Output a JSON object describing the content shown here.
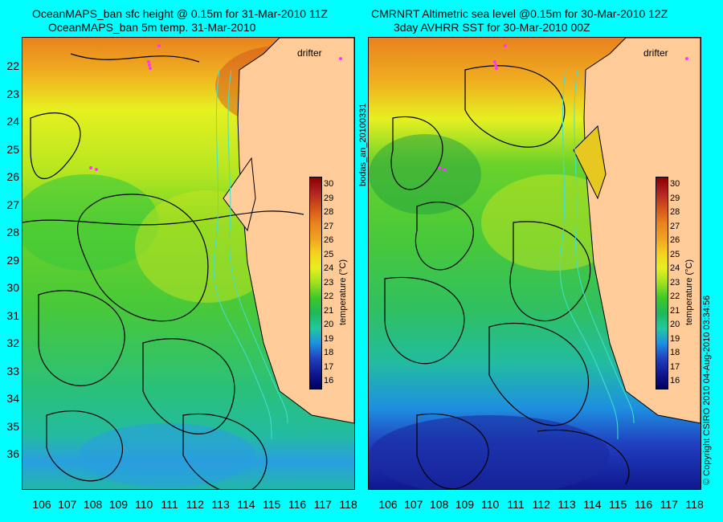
{
  "left_panel": {
    "title_line1": "OceanMAPS_ban sfc height @ 0.15m for 31-Mar-2010 11Z",
    "title_line2": "OceanMAPS_ban 5m temp. 31-Mar-2010",
    "drifter_label": "drifter",
    "colorbar_label": "temperature (°C)"
  },
  "right_panel": {
    "title_line1": "CMRNRT Altimetric sea level  @0.15m  for 30-Mar-2010 12Z",
    "title_line2": "3day AVHRR SST for 30-Mar-2010 00Z",
    "drifter_label": "drifter",
    "colorbar_label": "temperature (°C)"
  },
  "side_labels": {
    "run_id": "bodas_an_20100331",
    "credit": "© Copyright CSIRO 2010   04-Aug-2010 03:34:56"
  },
  "latitude_labels": [
    "22",
    "23",
    "24",
    "25",
    "26",
    "27",
    "28",
    "29",
    "30",
    "31",
    "32",
    "33",
    "34",
    "35",
    "36"
  ],
  "longitude_labels": [
    "106",
    "107",
    "108",
    "109",
    "110",
    "111",
    "112",
    "113",
    "114",
    "115",
    "116",
    "117",
    "118"
  ],
  "colorbar": {
    "ticks": [
      "30",
      "29",
      "28",
      "27",
      "26",
      "25",
      "24",
      "23",
      "22",
      "21",
      "20",
      "19",
      "18",
      "17",
      "16"
    ],
    "colors": [
      "#8b0000",
      "#b22222",
      "#d2521a",
      "#e8821e",
      "#f0a020",
      "#f5d020",
      "#e6f020",
      "#a0e01e",
      "#3cc828",
      "#20b85a",
      "#20c8a0",
      "#1e90e0",
      "#2040c0",
      "#101890",
      "#000060"
    ]
  },
  "colors": {
    "background": "#00ffff",
    "land": "#ffcc99",
    "drifter": "#ff33ff",
    "contour": "#000000",
    "isobath": "#40e0d0"
  }
}
